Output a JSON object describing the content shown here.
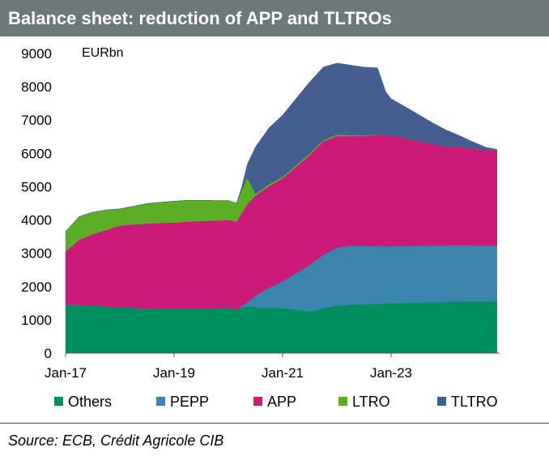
{
  "header": {
    "title": "Balance sheet: reduction of APP and TLTROs"
  },
  "footer": {
    "source": "Source: ECB, Crédit Agricole CIB"
  },
  "colors": {
    "Others": "#009060",
    "PEPP": "#3a84ad",
    "APP": "#cb1a78",
    "LTRO": "#5cae27",
    "TLTRO": "#445e90"
  },
  "chart_data": {
    "type": "area",
    "stacked": true,
    "unit_label": "EURbn",
    "ylim": [
      0,
      9000
    ],
    "yticks": [
      0,
      1000,
      2000,
      3000,
      4000,
      5000,
      6000,
      7000,
      8000,
      9000
    ],
    "xlim": [
      2017.0,
      2025.0
    ],
    "xticks": [
      {
        "label": "Jan-17",
        "value": 2017.0
      },
      {
        "label": "Jan-19",
        "value": 2019.0
      },
      {
        "label": "Jan-21",
        "value": 2021.0
      },
      {
        "label": "Jan-23",
        "value": 2023.0
      }
    ],
    "legend_position": "bottom",
    "x": [
      2017.0,
      2017.25,
      2017.5,
      2017.75,
      2018.0,
      2018.25,
      2018.5,
      2018.75,
      2019.0,
      2019.25,
      2019.5,
      2019.75,
      2020.0,
      2020.15,
      2020.25,
      2020.35,
      2020.5,
      2020.75,
      2021.0,
      2021.25,
      2021.5,
      2021.75,
      2022.0,
      2022.25,
      2022.5,
      2022.75,
      2022.9,
      2023.0,
      2023.25,
      2023.5,
      2023.75,
      2024.0,
      2024.25,
      2024.5,
      2024.75,
      2024.95
    ],
    "series": [
      {
        "name": "Others",
        "values": [
          1450,
          1450,
          1420,
          1400,
          1380,
          1360,
          1340,
          1330,
          1320,
          1330,
          1340,
          1350,
          1360,
          1300,
          1380,
          1400,
          1380,
          1360,
          1350,
          1300,
          1250,
          1350,
          1420,
          1450,
          1470,
          1480,
          1490,
          1500,
          1510,
          1520,
          1530,
          1540,
          1550,
          1550,
          1550,
          1550
        ]
      },
      {
        "name": "PEPP",
        "values": [
          0,
          0,
          0,
          0,
          0,
          0,
          0,
          0,
          0,
          0,
          0,
          0,
          0,
          0,
          30,
          120,
          350,
          600,
          800,
          1100,
          1400,
          1600,
          1750,
          1770,
          1750,
          1730,
          1720,
          1710,
          1700,
          1700,
          1700,
          1690,
          1690,
          1680,
          1680,
          1680
        ]
      },
      {
        "name": "APP",
        "values": [
          1600,
          1950,
          2150,
          2300,
          2450,
          2500,
          2550,
          2580,
          2600,
          2620,
          2630,
          2630,
          2640,
          2650,
          2800,
          2950,
          3000,
          3050,
          3100,
          3200,
          3300,
          3400,
          3350,
          3300,
          3300,
          3350,
          3340,
          3330,
          3250,
          3150,
          3050,
          2980,
          2950,
          2920,
          2870,
          2850
        ]
      },
      {
        "name": "LTRO",
        "values": [
          600,
          700,
          660,
          600,
          500,
          550,
          600,
          620,
          640,
          640,
          620,
          600,
          580,
          550,
          700,
          800,
          60,
          60,
          50,
          50,
          45,
          40,
          40,
          30,
          20,
          10,
          5,
          0,
          0,
          0,
          0,
          0,
          0,
          0,
          0,
          0
        ]
      },
      {
        "name": "TLTRO",
        "values": [
          0,
          0,
          0,
          0,
          0,
          0,
          0,
          0,
          0,
          0,
          0,
          0,
          0,
          0,
          100,
          400,
          1400,
          1700,
          1850,
          2000,
          2150,
          2200,
          2150,
          2100,
          2050,
          2000,
          1300,
          1100,
          950,
          800,
          650,
          500,
          350,
          200,
          80,
          40
        ]
      }
    ]
  }
}
